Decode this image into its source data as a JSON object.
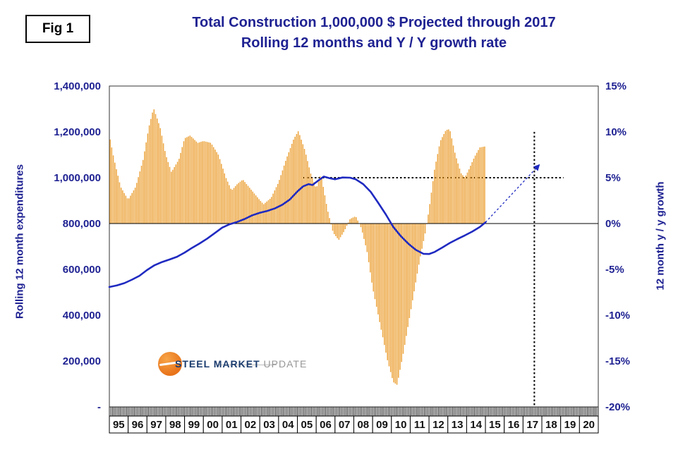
{
  "fig_label": "Fig 1",
  "title": {
    "line1": "Total Construction 1,000,000 $ Projected through 2017",
    "line2": "Rolling 12 months and Y / Y growth rate"
  },
  "left_axis": {
    "title": "Rolling 12 month expenditures",
    "tick_labels": [
      "1,400,000",
      "1,200,000",
      "1,000,000",
      "800,000",
      "600,000",
      "400,000",
      "200,000",
      "-"
    ]
  },
  "right_axis": {
    "title": "12 month y / y growth",
    "tick_labels": [
      "15%",
      "10%",
      "5%",
      "0%",
      "-5%",
      "-10%",
      "-15%",
      "-20%"
    ]
  },
  "x_axis": {
    "labels": [
      "95",
      "96",
      "97",
      "98",
      "99",
      "00",
      "01",
      "02",
      "03",
      "04",
      "05",
      "06",
      "07",
      "08",
      "09",
      "10",
      "11",
      "12",
      "13",
      "14",
      "15",
      "16",
      "17",
      "18",
      "19",
      "20"
    ]
  },
  "logo": {
    "steel": "STEEL",
    "market": "MARKET",
    "update": "UPDATE"
  },
  "colors": {
    "navy_text": "#1F2292",
    "bar": "#ECA33B",
    "line": "#1F2AC0",
    "dotted": "#000000",
    "axis": "#333333",
    "year_label": "#111111"
  },
  "chart_data": {
    "type": "bar",
    "subtype": "combo bar+line, dual axis",
    "title": "Total Construction 1,000,000 $ Projected through 2017",
    "subtitle": "Rolling 12 months and Y / Y growth rate",
    "x_range": [
      1995,
      2021
    ],
    "left_axis": {
      "label": "Rolling 12 month expenditures",
      "range": [
        0,
        1400000
      ],
      "tick_step": 200000
    },
    "right_axis": {
      "label": "12 month y / y growth",
      "range": [
        -20,
        15
      ],
      "tick_step": 5,
      "unit": "%"
    },
    "axis_alignment_note": "left $ = 800,000 + 40,000 x right %; 0% aligns with 800,000",
    "series": [
      {
        "name": "12 month y / y growth",
        "type": "bar",
        "axis": "right",
        "unit": "%",
        "bar_frequency": "monthly",
        "bars_span": [
          1995.0,
          2015.0
        ],
        "points": [
          [
            1995.0,
            9.6
          ],
          [
            1995.25,
            7.0
          ],
          [
            1995.6,
            4.0
          ],
          [
            1996.0,
            2.6
          ],
          [
            1996.4,
            4.0
          ],
          [
            1996.8,
            7.0
          ],
          [
            1997.1,
            10.5
          ],
          [
            1997.35,
            12.6
          ],
          [
            1997.7,
            10.5
          ],
          [
            1998.0,
            7.5
          ],
          [
            1998.3,
            5.6
          ],
          [
            1998.7,
            7.0
          ],
          [
            1999.0,
            9.3
          ],
          [
            1999.3,
            9.6
          ],
          [
            1999.7,
            8.8
          ],
          [
            2000.0,
            9.0
          ],
          [
            2000.4,
            8.8
          ],
          [
            2000.8,
            7.5
          ],
          [
            2001.2,
            5.0
          ],
          [
            2001.5,
            3.6
          ],
          [
            2001.8,
            4.3
          ],
          [
            2002.1,
            4.8
          ],
          [
            2002.5,
            3.8
          ],
          [
            2002.9,
            2.8
          ],
          [
            2003.2,
            2.1
          ],
          [
            2003.6,
            2.8
          ],
          [
            2004.0,
            4.5
          ],
          [
            2004.4,
            7.0
          ],
          [
            2004.8,
            9.2
          ],
          [
            2005.05,
            10.1
          ],
          [
            2005.4,
            8.0
          ],
          [
            2005.7,
            5.5
          ],
          [
            2006.0,
            3.8
          ],
          [
            2006.25,
            5.4
          ],
          [
            2006.6,
            1.5
          ],
          [
            2006.9,
            -1.0
          ],
          [
            2007.2,
            -1.8
          ],
          [
            2007.5,
            -0.8
          ],
          [
            2007.8,
            0.5
          ],
          [
            2008.1,
            0.8
          ],
          [
            2008.4,
            -0.5
          ],
          [
            2008.7,
            -3.0
          ],
          [
            2009.0,
            -7.0
          ],
          [
            2009.4,
            -11.0
          ],
          [
            2009.8,
            -15.0
          ],
          [
            2010.1,
            -17.3
          ],
          [
            2010.3,
            -17.6
          ],
          [
            2010.6,
            -14.5
          ],
          [
            2010.9,
            -11.0
          ],
          [
            2011.2,
            -7.5
          ],
          [
            2011.5,
            -4.0
          ],
          [
            2011.8,
            -1.0
          ],
          [
            2012.0,
            1.5
          ],
          [
            2012.3,
            6.0
          ],
          [
            2012.6,
            9.0
          ],
          [
            2012.9,
            10.2
          ],
          [
            2013.1,
            10.3
          ],
          [
            2013.4,
            7.5
          ],
          [
            2013.7,
            5.5
          ],
          [
            2013.9,
            5.0
          ],
          [
            2014.1,
            5.8
          ],
          [
            2014.4,
            7.2
          ],
          [
            2014.7,
            8.3
          ],
          [
            2014.95,
            8.4
          ]
        ]
      },
      {
        "name": "Rolling 12 month expenditures",
        "type": "line",
        "axis": "left",
        "unit": "$1,000",
        "points": [
          [
            1995.0,
            523000
          ],
          [
            1995.4,
            530000
          ],
          [
            1995.8,
            540000
          ],
          [
            1996.2,
            555000
          ],
          [
            1996.6,
            572000
          ],
          [
            1997.0,
            597000
          ],
          [
            1997.4,
            618000
          ],
          [
            1997.8,
            632000
          ],
          [
            1998.2,
            643000
          ],
          [
            1998.6,
            655000
          ],
          [
            1999.0,
            673000
          ],
          [
            1999.4,
            694000
          ],
          [
            1999.8,
            713000
          ],
          [
            2000.2,
            734000
          ],
          [
            2000.6,
            758000
          ],
          [
            2001.0,
            782000
          ],
          [
            2001.4,
            797000
          ],
          [
            2001.8,
            807000
          ],
          [
            2002.2,
            820000
          ],
          [
            2002.6,
            836000
          ],
          [
            2003.0,
            847000
          ],
          [
            2003.4,
            855000
          ],
          [
            2003.8,
            866000
          ],
          [
            2004.2,
            882000
          ],
          [
            2004.6,
            905000
          ],
          [
            2005.0,
            940000
          ],
          [
            2005.3,
            962000
          ],
          [
            2005.6,
            972000
          ],
          [
            2005.8,
            968000
          ],
          [
            2006.1,
            987000
          ],
          [
            2006.4,
            1005000
          ],
          [
            2006.7,
            998000
          ],
          [
            2007.0,
            993000
          ],
          [
            2007.4,
            1001000
          ],
          [
            2007.8,
            1000000
          ],
          [
            2008.1,
            993000
          ],
          [
            2008.5,
            972000
          ],
          [
            2008.9,
            938000
          ],
          [
            2009.3,
            890000
          ],
          [
            2009.7,
            840000
          ],
          [
            2010.1,
            785000
          ],
          [
            2010.5,
            745000
          ],
          [
            2010.9,
            712000
          ],
          [
            2011.3,
            685000
          ],
          [
            2011.7,
            668000
          ],
          [
            2012.0,
            667000
          ],
          [
            2012.3,
            676000
          ],
          [
            2012.7,
            695000
          ],
          [
            2013.1,
            715000
          ],
          [
            2013.5,
            732000
          ],
          [
            2013.9,
            748000
          ],
          [
            2014.3,
            765000
          ],
          [
            2014.7,
            785000
          ],
          [
            2015.0,
            805000
          ]
        ]
      },
      {
        "name": "Projection through 2017",
        "type": "dotted-line-arrow",
        "axis": "left",
        "points": [
          [
            2015.0,
            805000
          ],
          [
            2017.85,
            1055000
          ]
        ]
      }
    ],
    "annotations": {
      "horizontal_dotted_line": {
        "right_axis_value_pct": 5,
        "from_x": 2005.3,
        "to_x": 2019.15
      },
      "vertical_dotted_line": {
        "x": 2017.6,
        "from_right_pct": 10,
        "to_right_pct": -20
      }
    },
    "legend": "none",
    "grid": "off (only dotted annotation lines and zero baseline)"
  }
}
